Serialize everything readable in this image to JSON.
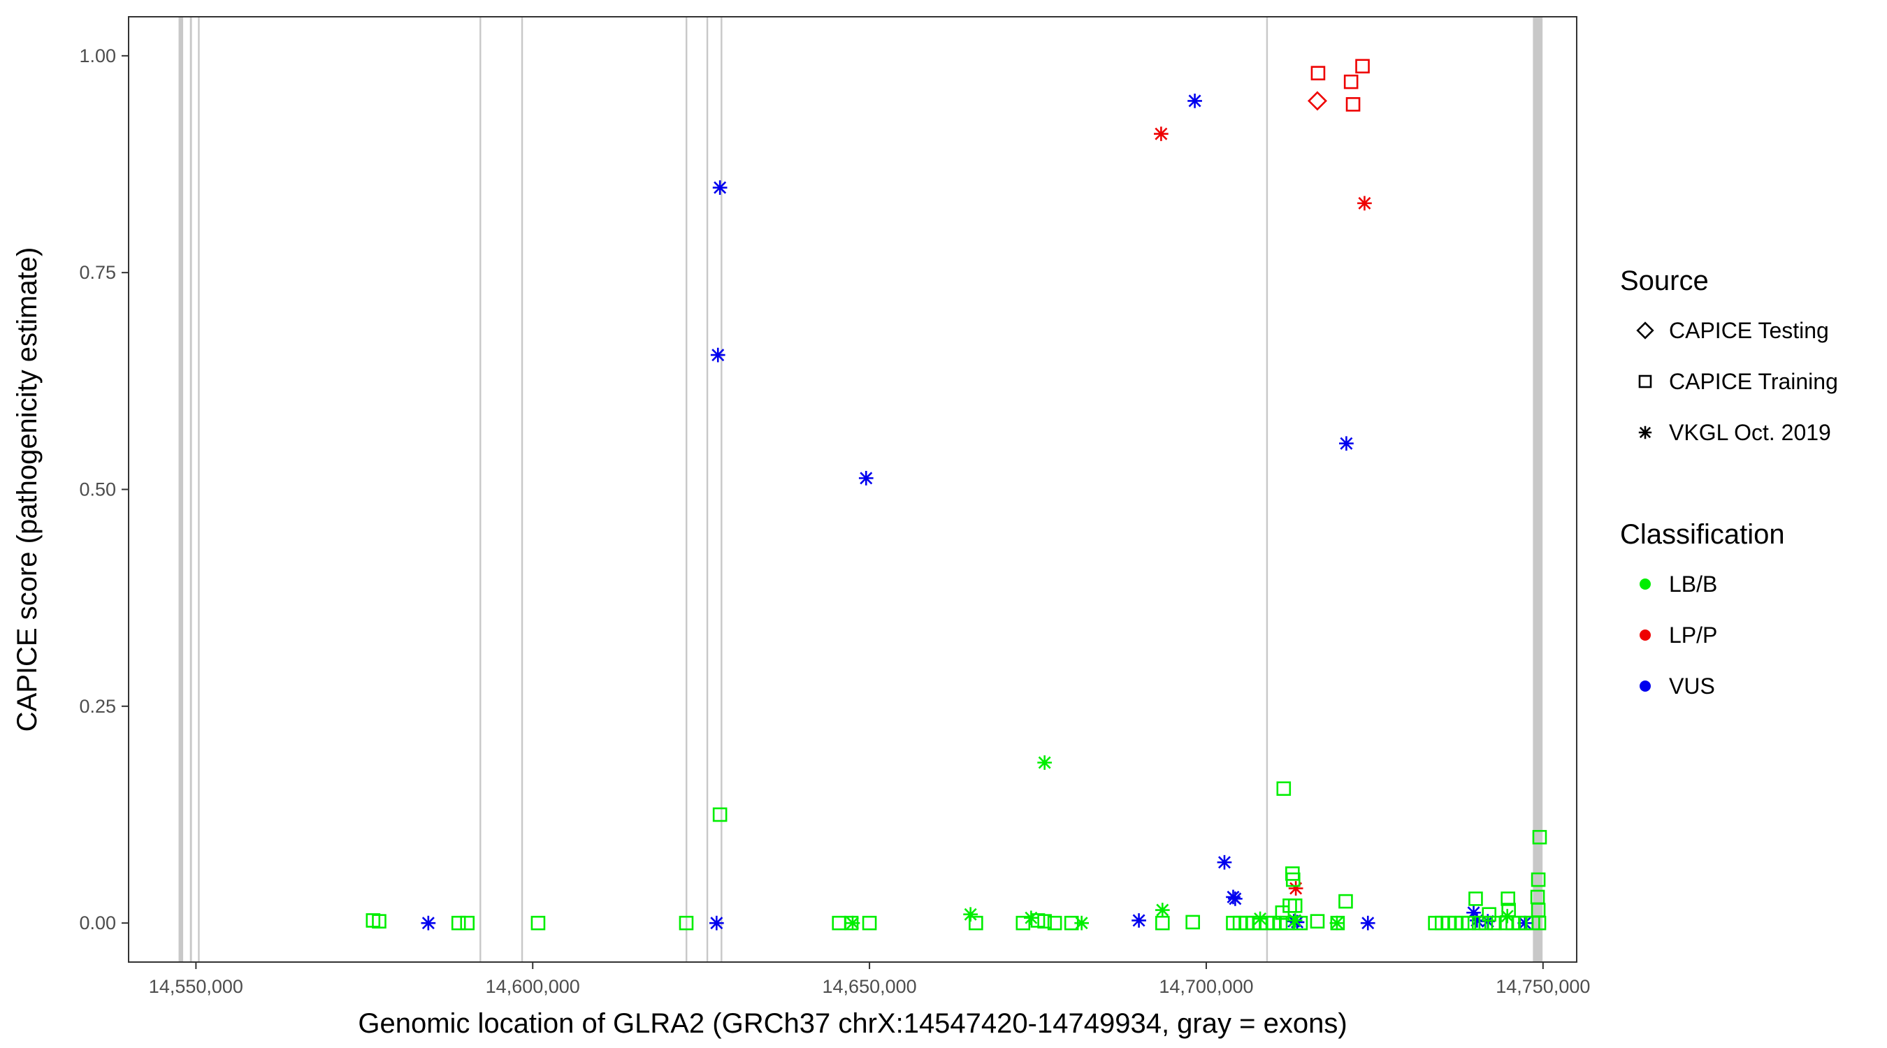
{
  "chart_data": {
    "type": "scatter",
    "xlabel": "Genomic location of GLRA2 (GRCh37 chrX:14547420-14749934, gray = exons)",
    "ylabel": "CAPICE score (pathogenicity estimate)",
    "xlim": [
      14540000,
      14755000
    ],
    "ylim": [
      -0.045,
      1.045
    ],
    "x_ticks": [
      14550000,
      14600000,
      14650000,
      14700000,
      14750000
    ],
    "x_tick_labels": [
      "14,550,000",
      "14,600,000",
      "14,650,000",
      "14,700,000",
      "14,750,000"
    ],
    "y_ticks": [
      0,
      0.25,
      0.5,
      0.75,
      1.0
    ],
    "y_tick_labels": [
      "0.00",
      "0.25",
      "0.50",
      "0.75",
      "1.00"
    ],
    "grid": false,
    "legend_position": "right",
    "colors": {
      "LB/B": "#00ee00",
      "LP/P": "#ee0000",
      "VUS": "#0000ee",
      "exon": "#bebebe",
      "frame": "#333333",
      "tick_text": "#4d4d4d"
    },
    "exons": [
      {
        "start": 14547420,
        "end": 14548100
      },
      {
        "start": 14549100,
        "end": 14549400
      },
      {
        "start": 14550300,
        "end": 14550550
      },
      {
        "start": 14592100,
        "end": 14592350
      },
      {
        "start": 14598300,
        "end": 14598550
      },
      {
        "start": 14622700,
        "end": 14622950
      },
      {
        "start": 14625800,
        "end": 14626050
      },
      {
        "start": 14627900,
        "end": 14628150
      },
      {
        "start": 14708900,
        "end": 14709150
      },
      {
        "start": 14748500,
        "end": 14749934
      }
    ],
    "legends": [
      {
        "title": "Source",
        "items": [
          {
            "label": "CAPICE Testing",
            "shape": "diamond"
          },
          {
            "label": "CAPICE Training",
            "shape": "square"
          },
          {
            "label": "VKGL Oct. 2019",
            "shape": "asterisk"
          }
        ]
      },
      {
        "title": "Classification",
        "items": [
          {
            "label": "LB/B",
            "color": "LB/B"
          },
          {
            "label": "LP/P",
            "color": "LP/P"
          },
          {
            "label": "VUS",
            "color": "VUS"
          }
        ]
      }
    ],
    "series": [
      {
        "source": "CAPICE Testing",
        "classification": "LP/P",
        "points": [
          [
            14716500,
            0.948
          ]
        ]
      },
      {
        "source": "CAPICE Training",
        "classification": "LP/P",
        "points": [
          [
            14716600,
            0.98
          ],
          [
            14721500,
            0.97
          ],
          [
            14721800,
            0.944
          ],
          [
            14723200,
            0.988
          ]
        ]
      },
      {
        "source": "VKGL Oct. 2019",
        "classification": "LP/P",
        "points": [
          [
            14693300,
            0.91
          ],
          [
            14723500,
            0.83
          ],
          [
            14713300,
            0.04
          ]
        ]
      },
      {
        "source": "VKGL Oct. 2019",
        "classification": "VUS",
        "points": [
          [
            14698300,
            0.948
          ],
          [
            14627800,
            0.848
          ],
          [
            14627500,
            0.655
          ],
          [
            14649500,
            0.513
          ],
          [
            14720800,
            0.553
          ],
          [
            14702700,
            0.07
          ],
          [
            14704000,
            0.03
          ],
          [
            14704300,
            0.028
          ],
          [
            14584500,
            0.0
          ],
          [
            14627300,
            0.0
          ],
          [
            14690000,
            0.003
          ],
          [
            14713000,
            0.002
          ],
          [
            14713500,
            0.001
          ],
          [
            14724000,
            0.0
          ],
          [
            14739700,
            0.012
          ],
          [
            14740200,
            0.003
          ],
          [
            14741800,
            0.002
          ],
          [
            14747300,
            0.0
          ]
        ]
      },
      {
        "source": "VKGL Oct. 2019",
        "classification": "LB/B",
        "points": [
          [
            14676000,
            0.185
          ],
          [
            14665000,
            0.01
          ],
          [
            14674000,
            0.006
          ],
          [
            14693500,
            0.015
          ],
          [
            14681500,
            0.0
          ],
          [
            14647500,
            0.0
          ],
          [
            14708000,
            0.005
          ],
          [
            14719400,
            0.0
          ],
          [
            14744700,
            0.008
          ],
          [
            14713200,
            0.003
          ]
        ]
      },
      {
        "source": "CAPICE Training",
        "classification": "LB/B",
        "points": [
          [
            14627800,
            0.125
          ],
          [
            14711500,
            0.155
          ],
          [
            14749500,
            0.099
          ],
          [
            14712800,
            0.057
          ],
          [
            14712900,
            0.05
          ],
          [
            14749300,
            0.05
          ],
          [
            14720700,
            0.025
          ],
          [
            14713200,
            0.02
          ],
          [
            14740000,
            0.028
          ],
          [
            14744800,
            0.028
          ],
          [
            14749200,
            0.03
          ],
          [
            14711300,
            0.012
          ],
          [
            14712400,
            0.02
          ],
          [
            14749300,
            0.015
          ],
          [
            14744900,
            0.015
          ],
          [
            14742000,
            0.01
          ],
          [
            14576300,
            0.003
          ],
          [
            14577200,
            0.002
          ],
          [
            14589000,
            0.0
          ],
          [
            14590300,
            0.0
          ],
          [
            14600800,
            0.0
          ],
          [
            14622800,
            0.0
          ],
          [
            14645500,
            0.0
          ],
          [
            14647300,
            0.0
          ],
          [
            14650000,
            0.0
          ],
          [
            14665800,
            0.0
          ],
          [
            14672800,
            0.0
          ],
          [
            14675000,
            0.003
          ],
          [
            14676000,
            0.002
          ],
          [
            14677500,
            0.0
          ],
          [
            14680000,
            0.0
          ],
          [
            14693500,
            0.0
          ],
          [
            14698000,
            0.001
          ],
          [
            14704000,
            0.0
          ],
          [
            14705000,
            0.0
          ],
          [
            14706000,
            0.0
          ],
          [
            14707000,
            0.0
          ],
          [
            14708000,
            0.0
          ],
          [
            14709000,
            0.0
          ],
          [
            14710000,
            0.0
          ],
          [
            14711000,
            0.0
          ],
          [
            14712000,
            0.0
          ],
          [
            14714000,
            0.0
          ],
          [
            14716500,
            0.002
          ],
          [
            14719500,
            0.0
          ],
          [
            14734000,
            0.0
          ],
          [
            14735000,
            0.0
          ],
          [
            14736000,
            0.0
          ],
          [
            14737000,
            0.0
          ],
          [
            14738000,
            0.0
          ],
          [
            14739000,
            0.0
          ],
          [
            14740500,
            0.0
          ],
          [
            14741500,
            0.0
          ],
          [
            14742800,
            0.0
          ],
          [
            14744500,
            0.0
          ],
          [
            14745500,
            0.0
          ],
          [
            14746500,
            0.0
          ],
          [
            14747500,
            0.0
          ],
          [
            14748500,
            0.0
          ],
          [
            14749400,
            0.0
          ]
        ]
      }
    ]
  }
}
